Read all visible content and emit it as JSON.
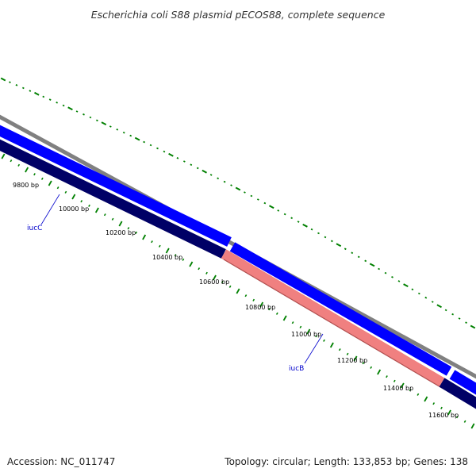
{
  "title": "Escherichia coli S88 plasmid pECOS88, complete sequence",
  "footer": {
    "accession": "Accession: NC_011747",
    "summary": "Topology: circular; Length: 133,853 bp; Genes: 138"
  },
  "colors": {
    "backbone": "#808080",
    "forward_feature": "#0000ff",
    "reverse_feature": "#000066",
    "highlight_feature": "#f08080",
    "tick": "#008000",
    "gene_label": "#0000cc"
  },
  "ticks": [
    {
      "label": "9800 bp"
    },
    {
      "label": "10000 bp"
    },
    {
      "label": "10200 bp"
    },
    {
      "label": "10400 bp"
    },
    {
      "label": "10600 bp"
    },
    {
      "label": "10800 bp"
    },
    {
      "label": "11000 bp"
    },
    {
      "label": "11200 bp"
    },
    {
      "label": "11400 bp"
    },
    {
      "label": "11600 bp"
    }
  ],
  "genes": [
    {
      "label": "iucC",
      "strand": "reverse"
    },
    {
      "label": "iucB",
      "strand": "reverse"
    }
  ]
}
